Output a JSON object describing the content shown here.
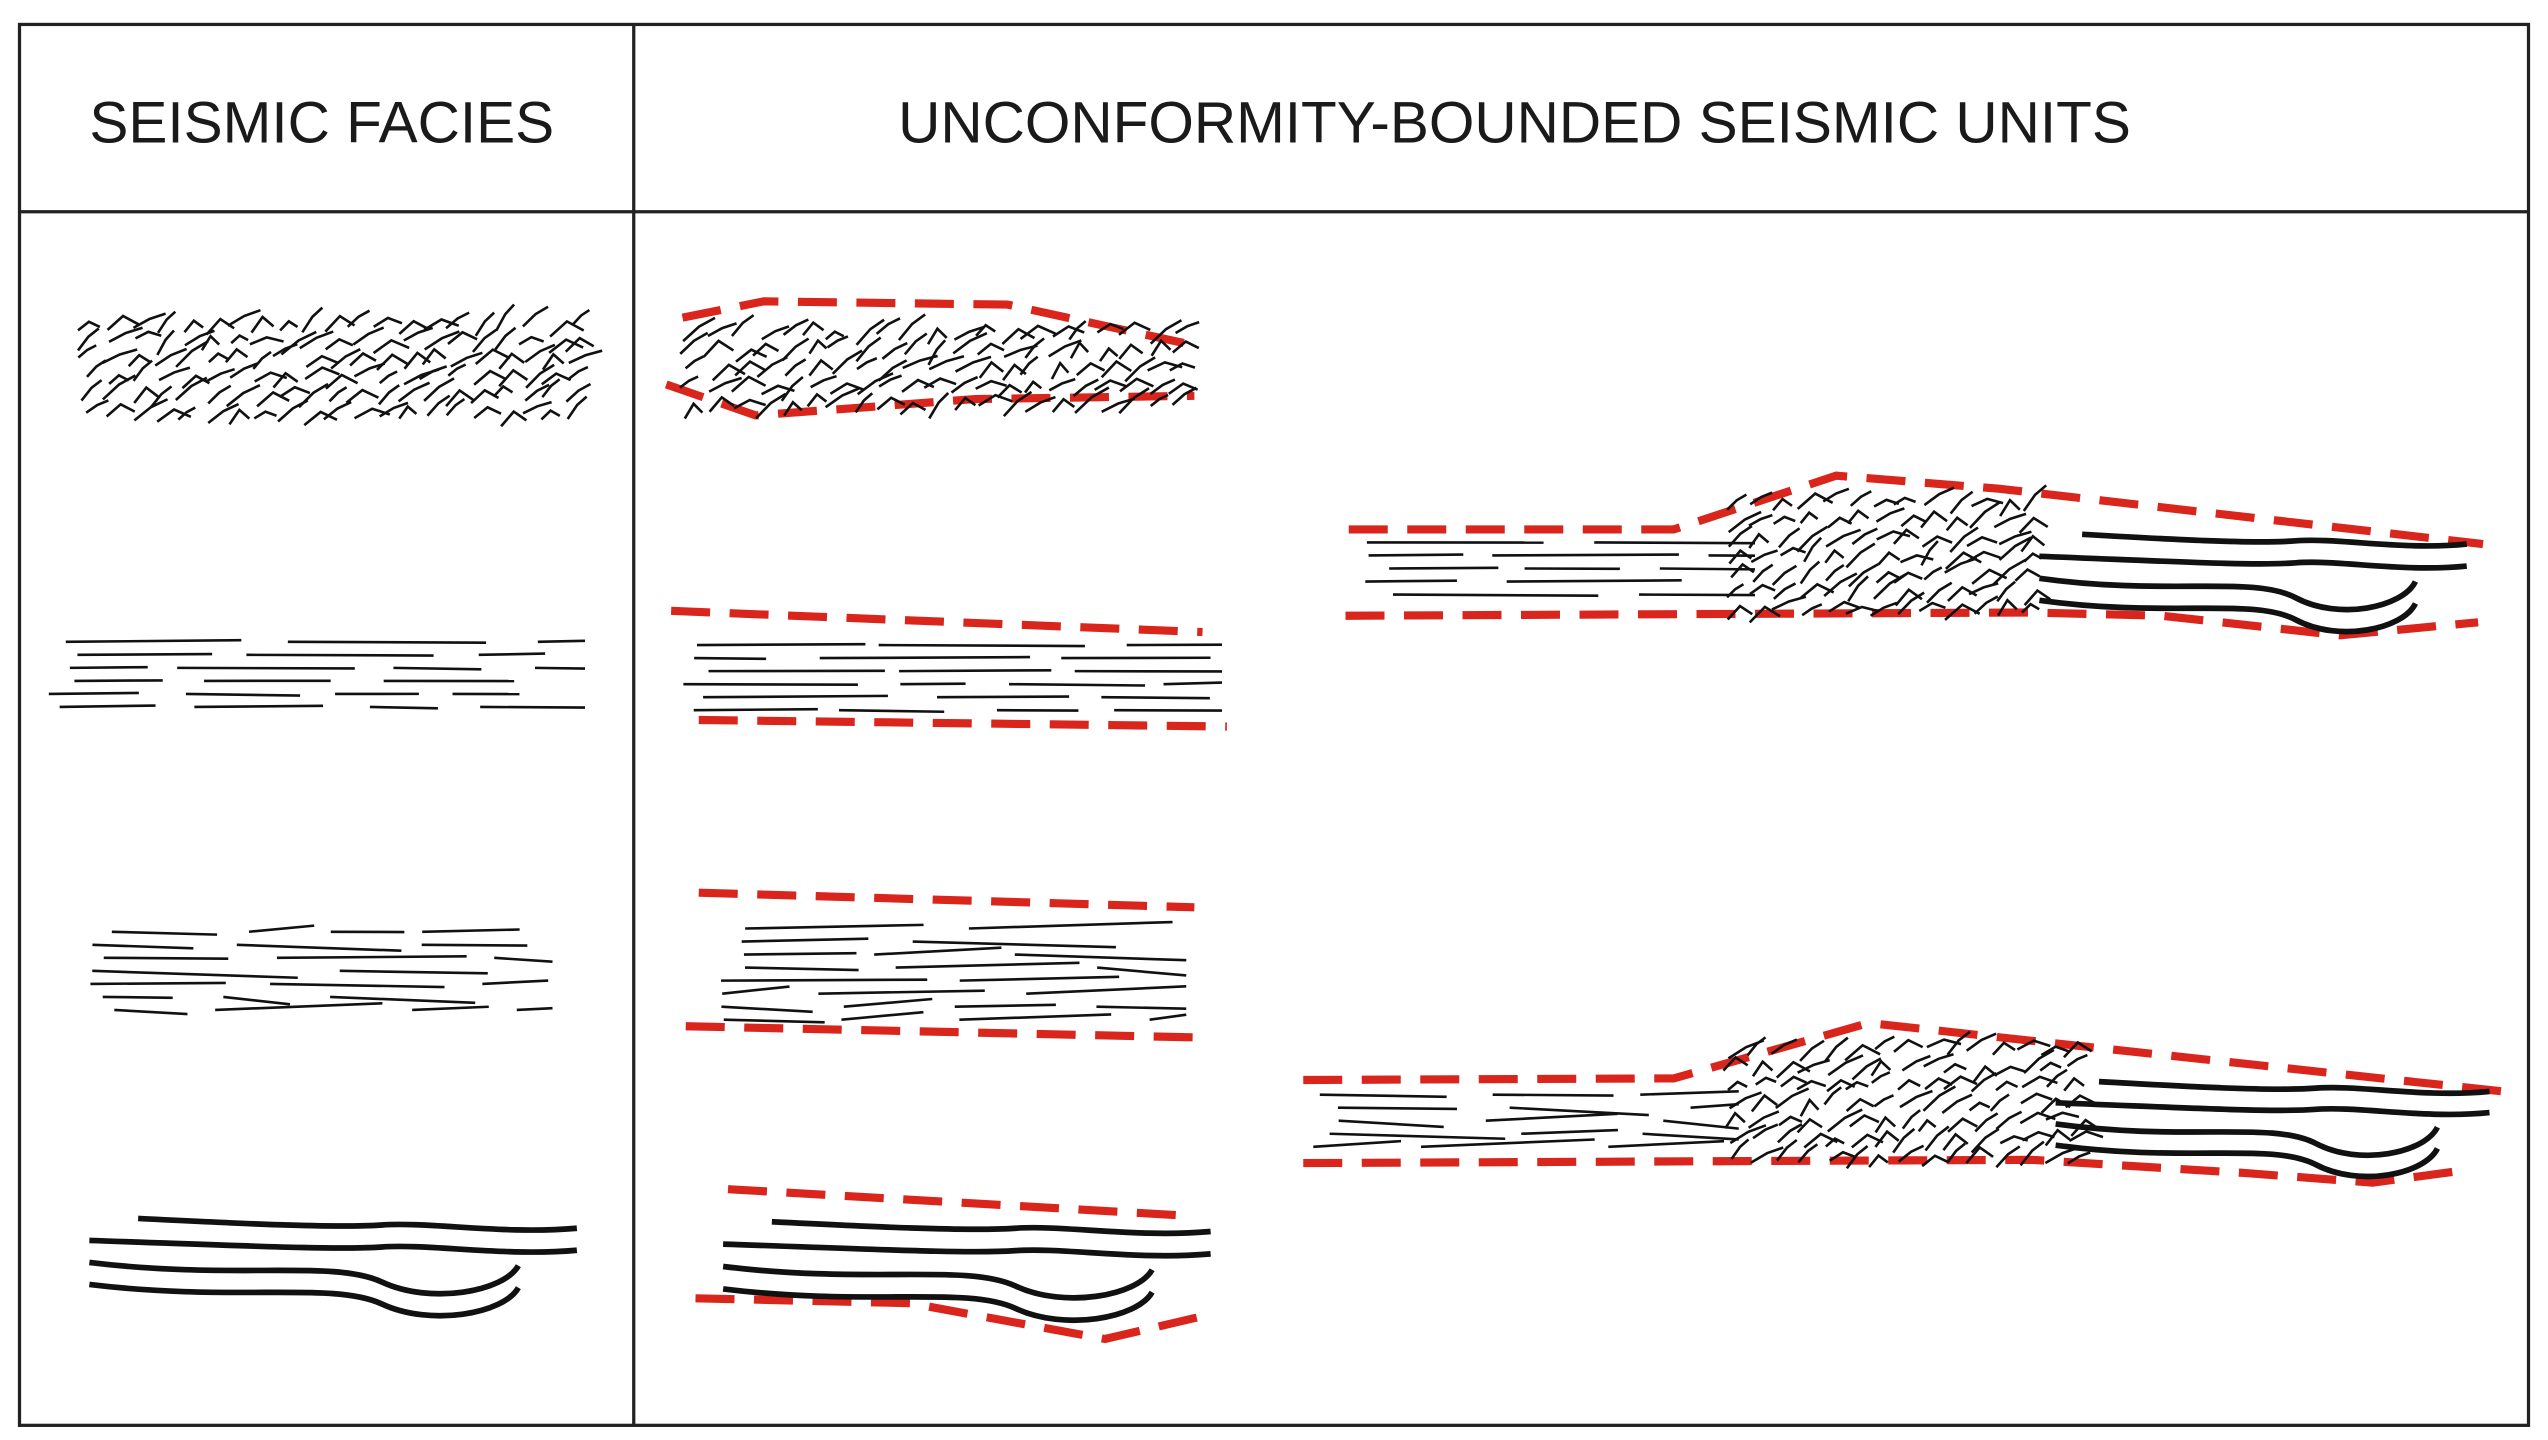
{
  "header": {
    "left": "SEISMIC FACIES",
    "right": "UNCONFORMITY-BOUNDED SEISMIC UNITS"
  }
}
